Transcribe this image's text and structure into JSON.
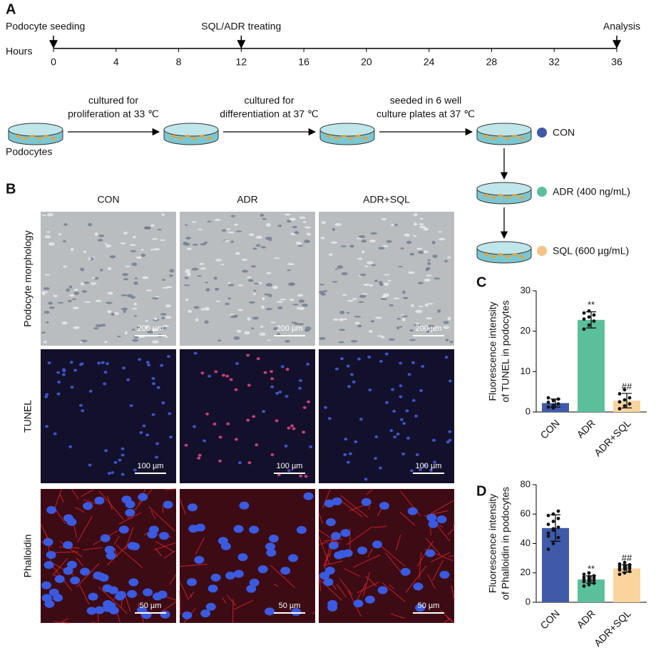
{
  "panel_labels": [
    "A",
    "B",
    "C",
    "D"
  ],
  "timeline": {
    "axis_label": "Hours",
    "ticks": [
      0,
      4,
      8,
      12,
      16,
      20,
      24,
      28,
      32,
      36
    ],
    "events": [
      {
        "label": "Podocyte seeding",
        "hour": 0
      },
      {
        "label": "SQL/ADR treating",
        "hour": 12
      },
      {
        "label": "Analysis",
        "hour": 36
      }
    ]
  },
  "workflow": {
    "start_label": "Podocytes",
    "steps": [
      [
        "cultured for",
        "proliferation at 33 ℃"
      ],
      [
        "cultured for",
        "differentiation at 37 ℃"
      ],
      [
        "seeded in 6 well",
        "culture plates at 37 ℃"
      ]
    ],
    "groups": [
      {
        "name": "CON",
        "color": "#3f5aa8"
      },
      {
        "name": "ADR (400 ng/mL)",
        "color": "#5cbf9b"
      },
      {
        "name": "SQL (600 µg/mL)",
        "color": "#f6c285"
      }
    ]
  },
  "micrographs": {
    "columns": [
      "CON",
      "ADR",
      "ADR+SQL"
    ],
    "rows": [
      {
        "label": "Podocyte morphology",
        "scale_bar": "200 µm"
      },
      {
        "label": "TUNEL",
        "scale_bar": "100 µm"
      },
      {
        "label": "Phalloidin",
        "scale_bar": "50 µm"
      }
    ]
  },
  "chart_data": [
    {
      "type": "bar",
      "ylabel": [
        "Fluorescence intensity",
        "of TUNEL in podocytes"
      ],
      "categories": [
        "CON",
        "ADR",
        "ADR+SQL"
      ],
      "values": [
        2.2,
        22.8,
        2.8
      ],
      "errors": [
        1.0,
        2.0,
        1.8
      ],
      "colors": [
        "#3f5aa8",
        "#5cbf9b",
        "#f9d49d"
      ],
      "points": [
        [
          1.2,
          1.6,
          2.0,
          2.4,
          2.8,
          3.2,
          3.5,
          1.0
        ],
        [
          20.5,
          21.5,
          22.5,
          23,
          23.5,
          24,
          24.5,
          25
        ],
        [
          0.8,
          1.5,
          2,
          2.5,
          3,
          3.5,
          4.5,
          5.5
        ]
      ],
      "annotations": [
        {
          "category": "ADR",
          "text": "**"
        },
        {
          "category": "ADR+SQL",
          "text": "##"
        }
      ],
      "ylim": [
        0,
        30
      ],
      "yticks": [
        0,
        10,
        20,
        30
      ]
    },
    {
      "type": "bar",
      "ylabel": [
        "Fluorescence intensity",
        "of Phalloidin in podocytes"
      ],
      "categories": [
        "CON",
        "ADR",
        "ADR+SQL"
      ],
      "values": [
        50.5,
        15.5,
        23
      ],
      "errors": [
        9,
        2.5,
        2.5
      ],
      "colors": [
        "#3f5aa8",
        "#5cbf9b",
        "#f9d49d"
      ],
      "points": [
        [
          36,
          40,
          44,
          47,
          49,
          51,
          53,
          55,
          57,
          59,
          60,
          62,
          45,
          50
        ],
        [
          11,
          12,
          13,
          14,
          14.5,
          15,
          15.5,
          16,
          16.5,
          17,
          17.5,
          18,
          19,
          20
        ],
        [
          19,
          20,
          21,
          22,
          22.5,
          23,
          23,
          23.5,
          24,
          24.5,
          25,
          25.5,
          26,
          27
        ]
      ],
      "annotations": [
        {
          "category": "ADR",
          "text": "**"
        },
        {
          "category": "ADR+SQL",
          "text": "##"
        }
      ],
      "ylim": [
        0,
        80
      ],
      "yticks": [
        0,
        20,
        40,
        60,
        80
      ]
    }
  ]
}
